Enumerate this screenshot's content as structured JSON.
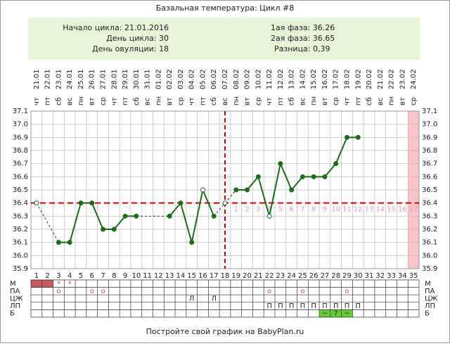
{
  "chart_data": {
    "type": "line",
    "title": "Базальная температура: Цикл #8",
    "weekdays": [
      "чт",
      "пт",
      "сб",
      "вс",
      "пн",
      "вт",
      "ср",
      "чт",
      "пт",
      "сб",
      "вс",
      "пн",
      "вт",
      "ср",
      "чт",
      "пт",
      "сб",
      "вс",
      "пн",
      "вт",
      "ср",
      "чт",
      "пт",
      "сб",
      "вс",
      "пн",
      "вт",
      "ср",
      "чт",
      "пт",
      "сб",
      "вс",
      "пн",
      "вт",
      "ср"
    ],
    "dates": [
      "21.01",
      "22.01",
      "23.01",
      "24.01",
      "25.01",
      "26.01",
      "27.01",
      "28.01",
      "29.01",
      "30.01",
      "31.01",
      "01.02",
      "02.02",
      "03.02",
      "04.02",
      "05.02",
      "06.02",
      "07.02",
      "08.02",
      "09.02",
      "10.02",
      "11.02",
      "12.02",
      "13.02",
      "14.02",
      "15.02",
      "16.02",
      "17.02",
      "18.02",
      "19.02",
      "20.02",
      "21.02",
      "22.02",
      "23.02",
      "24.02"
    ],
    "categories": [
      1,
      2,
      3,
      4,
      5,
      6,
      7,
      8,
      9,
      10,
      11,
      12,
      13,
      14,
      15,
      16,
      17,
      18,
      19,
      20,
      21,
      22,
      23,
      24,
      25,
      26,
      27,
      28,
      29,
      30,
      31,
      32,
      33,
      34,
      35
    ],
    "values": [
      36.4,
      null,
      36.1,
      36.1,
      36.4,
      36.4,
      36.2,
      36.2,
      36.3,
      36.3,
      null,
      null,
      36.3,
      36.4,
      36.1,
      36.5,
      36.3,
      36.4,
      36.5,
      36.5,
      36.6,
      36.3,
      36.7,
      36.5,
      36.6,
      36.6,
      36.6,
      36.7,
      36.9,
      36.9,
      null,
      null,
      null,
      null,
      null
    ],
    "open_points": [
      0,
      15,
      17,
      21
    ],
    "dashed_points": [
      17
    ],
    "color": "#1e6b1e",
    "luteal_days": [
      null,
      null,
      null,
      null,
      null,
      null,
      null,
      null,
      null,
      null,
      null,
      null,
      null,
      null,
      null,
      null,
      null,
      null,
      1,
      2,
      3,
      4,
      5,
      6,
      7,
      8,
      9,
      10,
      11,
      12,
      13,
      14,
      15,
      16,
      17
    ],
    "coverline": 36.4,
    "ovulation_day": 18,
    "highlight_day": 35,
    "highlight_color": "#f7c4c8",
    "ylim": [
      35.9,
      37.1
    ],
    "yticks": [
      35.9,
      {
        "value": 36,
        "label": "36.0"
      },
      36.1,
      36.2,
      36.3,
      36.4,
      36.5,
      36.6,
      36.7,
      36.8,
      36.9,
      {
        "value": 37,
        "label": "37.0"
      },
      37.1
    ],
    "grid": true
  },
  "info": {
    "left": [
      "Начало цикла: 21.01.2016",
      "День цикла: 30",
      "День овуляции: 18"
    ],
    "right": [
      "1ая фаза: 36.26",
      "2ая фаза: 36.65",
      "Разница: 0,39"
    ]
  },
  "table": {
    "rows": [
      {
        "label": "М",
        "cells": [
          null,
          null,
          "*",
          "*"
        ],
        "fill": [
          0,
          1
        ],
        "fill_color": "#cc5a5a",
        "text_color": "#d05050"
      },
      {
        "label": "ПА",
        "cells": [
          null,
          null,
          "о",
          null,
          null,
          "о",
          "о",
          null,
          null,
          null,
          null,
          null,
          null,
          null,
          null,
          null,
          null,
          null,
          null,
          null,
          null,
          "о",
          null,
          null,
          "о",
          null,
          null,
          null,
          "о"
        ],
        "text_color": "#d05050"
      },
      {
        "label": "ЦЖ",
        "cells": [
          null,
          null,
          null,
          null,
          null,
          null,
          null,
          null,
          null,
          null,
          null,
          null,
          null,
          null,
          "Л",
          null,
          "Л"
        ],
        "text_color": "#222"
      },
      {
        "label": "ЛП",
        "cells": [
          null,
          null,
          null,
          null,
          null,
          null,
          null,
          null,
          null,
          null,
          null,
          null,
          null,
          null,
          null,
          null,
          null,
          null,
          null,
          null,
          null,
          "П",
          "П",
          "П",
          "П",
          "П",
          "П",
          "П",
          "П",
          "П"
        ],
        "text_color": "#222"
      },
      {
        "label": "Б",
        "cells": [
          null,
          null,
          null,
          null,
          null,
          null,
          null,
          null,
          null,
          null,
          null,
          null,
          null,
          null,
          null,
          null,
          null,
          null,
          null,
          null,
          null,
          null,
          null,
          null,
          null,
          null,
          "~",
          "?",
          "~"
        ],
        "fill": [
          26,
          27,
          28
        ],
        "fill_color": "#66cc33",
        "text_color": "#222"
      }
    ]
  },
  "footer": "Постройте свой график на BabyPlan.ru"
}
